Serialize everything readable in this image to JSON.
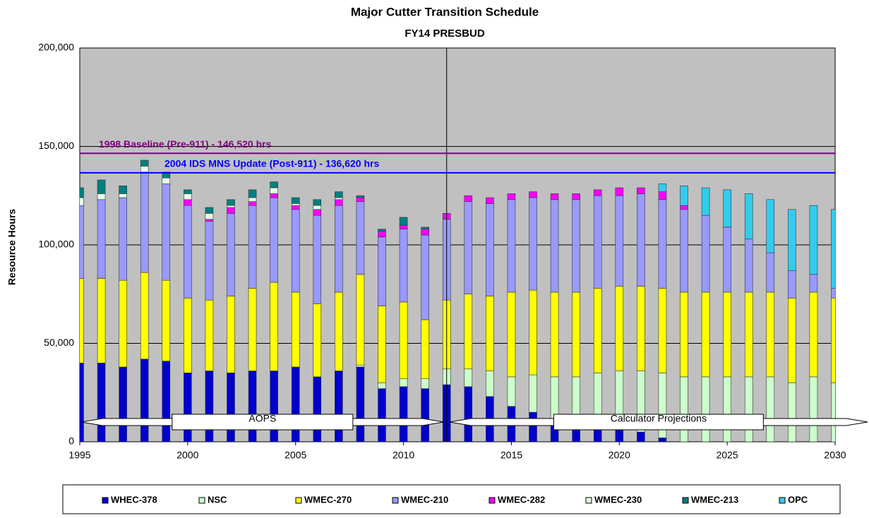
{
  "chart_data": {
    "type": "stacked-bar",
    "title": "Major Cutter Transition Schedule",
    "subtitle": "FY14 PRESBUD",
    "y_label": "Resource Hours",
    "x": [
      1995,
      1996,
      1997,
      1998,
      1999,
      2000,
      2001,
      2002,
      2003,
      2004,
      2005,
      2006,
      2007,
      2008,
      2009,
      2010,
      2011,
      2012,
      2013,
      2014,
      2015,
      2016,
      2017,
      2018,
      2019,
      2020,
      2021,
      2022,
      2023,
      2024,
      2025,
      2026,
      2027,
      2028,
      2029,
      2030
    ],
    "xlim": [
      1995,
      2030
    ],
    "xticks": [
      1995,
      2000,
      2005,
      2010,
      2015,
      2020,
      2025,
      2030
    ],
    "ylim": [
      0,
      200000
    ],
    "yticks": [
      0,
      {
        "value": 50000,
        "label": "50,000"
      },
      {
        "value": 100000,
        "label": "100,000"
      },
      {
        "value": 150000,
        "label": "150,000"
      },
      {
        "value": 200000,
        "label": "200,000"
      }
    ],
    "grid": true,
    "background": "#c0c0c0",
    "legend": "bottom",
    "series": [
      {
        "name": "WHEC-378",
        "color": "#0000cc",
        "values": [
          40000,
          40000,
          38000,
          42000,
          41000,
          35000,
          36000,
          35000,
          36000,
          36000,
          38000,
          33000,
          36000,
          38000,
          27000,
          28000,
          27000,
          29000,
          28000,
          23000,
          18000,
          15000,
          10000,
          8000,
          7000,
          6000,
          5000,
          2000,
          0,
          0,
          0,
          0,
          0,
          0,
          0,
          0
        ]
      },
      {
        "name": "NSC",
        "color": "#ccffcc",
        "values": [
          0,
          0,
          0,
          0,
          0,
          0,
          0,
          0,
          0,
          0,
          0,
          0,
          0,
          1000,
          3000,
          4000,
          5000,
          8000,
          9000,
          13000,
          15000,
          19000,
          23000,
          25000,
          28000,
          30000,
          31000,
          33000,
          33000,
          33000,
          33000,
          33000,
          33000,
          30000,
          33000,
          30000
        ]
      },
      {
        "name": "WMEC-270",
        "color": "#ffff00",
        "values": [
          43000,
          43000,
          44000,
          44000,
          41000,
          38000,
          36000,
          39000,
          42000,
          45000,
          38000,
          37000,
          40000,
          46000,
          39000,
          39000,
          30000,
          35000,
          38000,
          38000,
          43000,
          43000,
          43000,
          43000,
          43000,
          43000,
          43000,
          43000,
          43000,
          43000,
          43000,
          43000,
          43000,
          43000,
          43000,
          43000
        ]
      },
      {
        "name": "WMEC-210",
        "color": "#9999ff",
        "values": [
          37000,
          40000,
          42000,
          51000,
          49000,
          47000,
          40000,
          42000,
          42000,
          43000,
          42000,
          45000,
          44000,
          37000,
          35000,
          37000,
          43000,
          41000,
          47000,
          47000,
          47000,
          47000,
          47000,
          47000,
          47000,
          46000,
          47000,
          45000,
          42000,
          39000,
          33000,
          27000,
          20000,
          14000,
          9000,
          5000
        ]
      },
      {
        "name": "WMEC-282",
        "color": "#ff00ff",
        "values": [
          0,
          0,
          0,
          0,
          0,
          3000,
          1000,
          3000,
          2000,
          2000,
          2000,
          3000,
          3000,
          2000,
          3000,
          2000,
          3000,
          3000,
          3000,
          3000,
          3000,
          3000,
          3000,
          3000,
          3000,
          4000,
          3000,
          4000,
          2000,
          0,
          0,
          0,
          0,
          0,
          0,
          0
        ]
      },
      {
        "name": "WMEC-230",
        "color": "#e8ffe8",
        "values": [
          4000,
          3000,
          2000,
          3000,
          3000,
          3000,
          3000,
          1000,
          2000,
          3000,
          1000,
          2000,
          1000,
          0,
          0,
          0,
          0,
          0,
          0,
          0,
          0,
          0,
          0,
          0,
          0,
          0,
          0,
          0,
          0,
          0,
          0,
          0,
          0,
          0,
          0,
          0
        ]
      },
      {
        "name": "WMEC-213",
        "color": "#008080",
        "values": [
          5000,
          7000,
          4000,
          3000,
          3000,
          2000,
          3000,
          3000,
          4000,
          3000,
          3000,
          3000,
          3000,
          1000,
          1000,
          4000,
          1000,
          0,
          0,
          0,
          0,
          0,
          0,
          0,
          0,
          0,
          0,
          0,
          0,
          0,
          0,
          0,
          0,
          0,
          0,
          0
        ]
      },
      {
        "name": "OPC",
        "color": "#33ccee",
        "values": [
          0,
          0,
          0,
          0,
          0,
          0,
          0,
          0,
          0,
          0,
          0,
          0,
          0,
          0,
          0,
          0,
          0,
          0,
          0,
          0,
          0,
          0,
          0,
          0,
          0,
          0,
          0,
          4000,
          10000,
          14000,
          19000,
          23000,
          27000,
          31000,
          35000,
          40000
        ]
      }
    ],
    "reference_lines": [
      {
        "value": 146520,
        "label": "1998 Baseline (Pre-911)  - 146,520 hrs",
        "color": "#800080"
      },
      {
        "value": 136620,
        "label": "2004 IDS MNS Update (Post-911)  - 136,620 hrs",
        "color": "#0000ff"
      }
    ],
    "divider_x": 2012,
    "annotations": [
      "AOPS",
      "Calculator Projections"
    ]
  }
}
